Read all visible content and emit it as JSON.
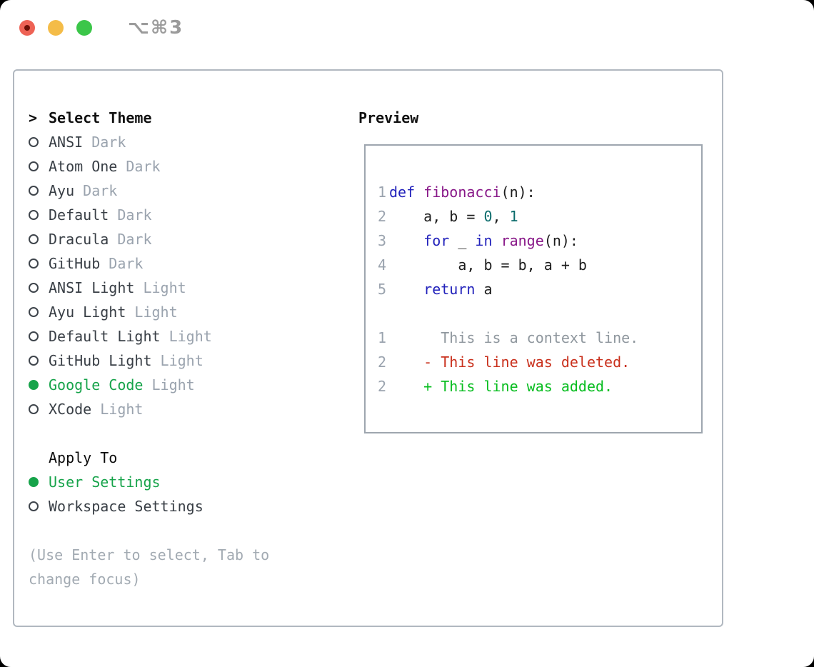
{
  "colors": {
    "keyword": "#2222bb",
    "name": "#881888",
    "number": "#0a6b6b",
    "plain": "#1c1c1c",
    "line_number": "#9aa3ae",
    "context": "#8f979e",
    "deleted": "#c9301c",
    "added": "#07bd1f",
    "accent_green": "#16a34a",
    "muted_gray": "#9aa3ae"
  },
  "window": {
    "shortcut": "⌥⌘3",
    "traffic_lights": [
      "close",
      "minimize",
      "zoom"
    ]
  },
  "theme_selector": {
    "title_marker": ">",
    "title": "Select Theme",
    "items": [
      {
        "name": "ANSI",
        "variant": "Dark",
        "selected": false
      },
      {
        "name": "Atom One",
        "variant": "Dark",
        "selected": false
      },
      {
        "name": "Ayu",
        "variant": "Dark",
        "selected": false
      },
      {
        "name": "Default",
        "variant": "Dark",
        "selected": false
      },
      {
        "name": "Dracula",
        "variant": "Dark",
        "selected": false
      },
      {
        "name": "GitHub",
        "variant": "Dark",
        "selected": false
      },
      {
        "name": "ANSI Light",
        "variant": "Light",
        "selected": false
      },
      {
        "name": "Ayu Light",
        "variant": "Light",
        "selected": false
      },
      {
        "name": "Default Light",
        "variant": "Light",
        "selected": false
      },
      {
        "name": "GitHub Light",
        "variant": "Light",
        "selected": false
      },
      {
        "name": "Google Code",
        "variant": "Light",
        "selected": true
      },
      {
        "name": "XCode",
        "variant": "Light",
        "selected": false
      }
    ],
    "apply_to": {
      "title": "Apply To",
      "options": [
        {
          "label": "User Settings",
          "selected": true
        },
        {
          "label": "Workspace Settings",
          "selected": false
        }
      ]
    },
    "hint": "(Use Enter to select, Tab to change focus)"
  },
  "preview": {
    "title": "Preview",
    "code_lines": [
      {
        "num": "1",
        "segments": [
          {
            "text": "def",
            "color": "keyword"
          },
          {
            "text": " ",
            "color": "plain"
          },
          {
            "text": "fibonacci",
            "color": "name"
          },
          {
            "text": "(n):",
            "color": "plain"
          }
        ]
      },
      {
        "num": "2",
        "segments": [
          {
            "text": "    a, b = ",
            "color": "plain"
          },
          {
            "text": "0",
            "color": "number"
          },
          {
            "text": ", ",
            "color": "plain"
          },
          {
            "text": "1",
            "color": "number"
          }
        ]
      },
      {
        "num": "3",
        "segments": [
          {
            "text": "    ",
            "color": "plain"
          },
          {
            "text": "for",
            "color": "keyword"
          },
          {
            "text": " _ ",
            "color": "plain"
          },
          {
            "text": "in",
            "color": "keyword"
          },
          {
            "text": " ",
            "color": "plain"
          },
          {
            "text": "range",
            "color": "name"
          },
          {
            "text": "(n):",
            "color": "plain"
          }
        ]
      },
      {
        "num": "4",
        "segments": [
          {
            "text": "        a, b = b, a + b",
            "color": "plain"
          }
        ]
      },
      {
        "num": "5",
        "segments": [
          {
            "text": "    ",
            "color": "plain"
          },
          {
            "text": "return",
            "color": "keyword"
          },
          {
            "text": " a",
            "color": "plain"
          }
        ]
      }
    ],
    "diff_lines": [
      {
        "num": "1",
        "text": "      This is a context line.",
        "type": "context"
      },
      {
        "num": "2",
        "text": "    - This line was deleted.",
        "type": "deleted"
      },
      {
        "num": "2",
        "text": "    + This line was added.",
        "type": "added"
      }
    ]
  }
}
